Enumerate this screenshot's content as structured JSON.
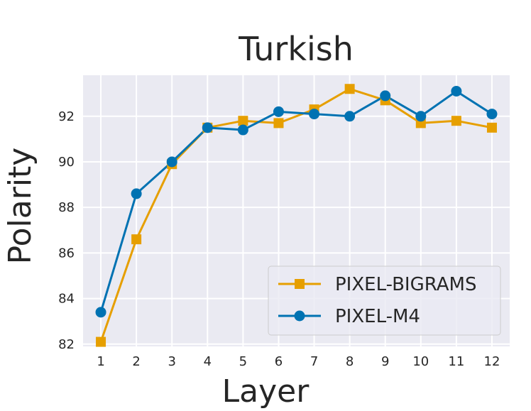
{
  "chart_data": {
    "type": "line",
    "title": "Turkish",
    "xlabel": "Layer",
    "ylabel": "Polarity",
    "x": [
      1,
      2,
      3,
      4,
      5,
      6,
      7,
      8,
      9,
      10,
      11,
      12
    ],
    "x_tick_labels": [
      "1",
      "2",
      "3",
      "4",
      "5",
      "6",
      "7",
      "8",
      "9",
      "10",
      "11",
      "12"
    ],
    "y_ticks": [
      82,
      84,
      86,
      88,
      90,
      92
    ],
    "y_tick_labels": [
      "82",
      "84",
      "86",
      "88",
      "90",
      "92"
    ],
    "xlim": [
      0.5,
      12.5
    ],
    "ylim": [
      81.9,
      93.8
    ],
    "grid": true,
    "legend_position": "bottom-right",
    "series": [
      {
        "name": "PIXEL-BIGRAMS",
        "color": "#E69F00",
        "marker": "square",
        "values": [
          82.1,
          86.6,
          89.9,
          91.5,
          91.8,
          91.7,
          92.3,
          93.2,
          92.7,
          91.7,
          91.8,
          91.5
        ]
      },
      {
        "name": "PIXEL-M4",
        "color": "#0072B2",
        "marker": "circle",
        "values": [
          83.4,
          88.6,
          90.0,
          91.5,
          91.4,
          92.2,
          92.1,
          92.0,
          92.9,
          92.0,
          93.1,
          92.1
        ]
      }
    ]
  }
}
